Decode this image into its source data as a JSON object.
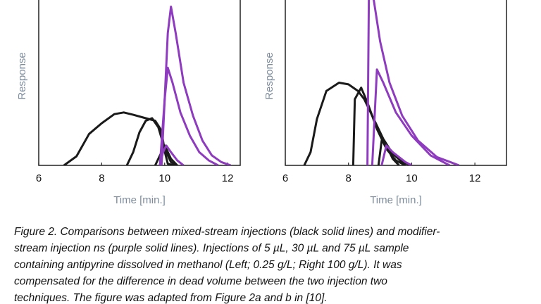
{
  "chart_data": [
    {
      "type": "line",
      "xlabel": "Time [min.]",
      "ylabel": "Response",
      "xlim": [
        6,
        12.4
      ],
      "ylim": [
        0,
        100
      ],
      "xticks": [
        6,
        8,
        10,
        12
      ],
      "series": [
        {
          "color": "#1a1a1a",
          "x": [
            6.8,
            7.2,
            7.6,
            8.0,
            8.4,
            8.7,
            9.0,
            9.4,
            9.7,
            9.9,
            10.0,
            10.1,
            10.3
          ],
          "values": [
            0,
            5.5,
            19,
            25.5,
            31,
            32,
            30.6,
            28.5,
            27,
            21,
            8.5,
            1,
            0
          ]
        },
        {
          "color": "#1a1a1a",
          "x": [
            8.8,
            9.0,
            9.2,
            9.4,
            9.6,
            9.8,
            10.0,
            10.2,
            10.4
          ],
          "values": [
            0,
            8,
            20,
            27,
            28.5,
            23,
            10,
            2,
            0
          ]
        },
        {
          "color": "#1a1a1a",
          "x": [
            9.7,
            9.9,
            10.0,
            10.2,
            10.4
          ],
          "values": [
            0,
            8,
            12,
            4,
            0
          ]
        },
        {
          "color": "#8e3bbf",
          "x": [
            9.85,
            10.0,
            10.1,
            10.2,
            10.35,
            10.6,
            10.9,
            11.2,
            11.5,
            11.8,
            12.1
          ],
          "values": [
            0,
            40,
            80,
            96,
            80,
            50,
            30,
            15,
            6,
            2,
            0
          ]
        },
        {
          "color": "#8e3bbf",
          "x": [
            9.9,
            10.0,
            10.1,
            10.25,
            10.5,
            10.8,
            11.1,
            11.4,
            11.7
          ],
          "values": [
            0,
            40,
            59,
            50,
            32,
            18,
            8,
            3,
            0
          ]
        },
        {
          "color": "#8e3bbf",
          "x": [
            9.85,
            9.95,
            10.05,
            10.2,
            10.4,
            10.6
          ],
          "values": [
            0,
            8,
            12,
            8,
            3,
            0
          ]
        }
      ]
    },
    {
      "type": "line",
      "xlabel": "Time [min.]",
      "ylabel": "Response",
      "xlim": [
        6,
        13
      ],
      "ylim": [
        0,
        100
      ],
      "xticks": [
        6,
        8,
        10,
        12
      ],
      "series": [
        {
          "color": "#1a1a1a",
          "x": [
            6.6,
            6.8,
            7.0,
            7.3,
            7.7,
            8.0,
            8.3,
            8.5,
            8.8,
            9.1,
            9.4,
            9.7,
            10.0
          ],
          "values": [
            0,
            8,
            28,
            45,
            50,
            49,
            45,
            40,
            28,
            16,
            7,
            2,
            0
          ]
        },
        {
          "color": "#1a1a1a",
          "x": [
            8.15,
            8.2,
            8.4,
            8.6,
            8.9,
            9.2,
            9.5,
            9.8
          ],
          "values": [
            0,
            40,
            47,
            38,
            22,
            10,
            3,
            0
          ]
        },
        {
          "color": "#1a1a1a",
          "x": [
            8.95,
            9.05,
            9.2,
            9.4,
            9.6
          ],
          "values": [
            0,
            15,
            12,
            4,
            0
          ]
        },
        {
          "color": "#8e3bbf",
          "x": [
            8.6,
            8.65,
            8.8,
            9.0,
            9.3,
            9.7,
            10.2,
            10.8,
            11.5
          ],
          "values": [
            0,
            115,
            100,
            75,
            50,
            30,
            15,
            5,
            0
          ]
        },
        {
          "color": "#8e3bbf",
          "x": [
            8.75,
            8.9,
            9.1,
            9.5,
            10.0,
            10.6,
            11.2
          ],
          "values": [
            0,
            58,
            50,
            32,
            18,
            6,
            0
          ]
        },
        {
          "color": "#8e3bbf",
          "x": [
            9.05,
            9.2,
            9.4,
            9.8,
            10.0
          ],
          "values": [
            0,
            12,
            8,
            2,
            0
          ]
        }
      ]
    }
  ],
  "caption": {
    "lines": [
      "Figure 2. Comparisons between mixed-stream injections (black solid lines) and modifier-",
      "stream injection ns (purple solid lines).  Injections of 5 µL, 30 µL and 75 µL sample",
      "containing antipyrine dissolved in methanol (Left; 0.25 g/L; Right 100 g/L). It was",
      "compensated for the difference in dead volume between the two injection two",
      "techniques. The figure was adapted from Figure 2a and b in [10]."
    ]
  }
}
